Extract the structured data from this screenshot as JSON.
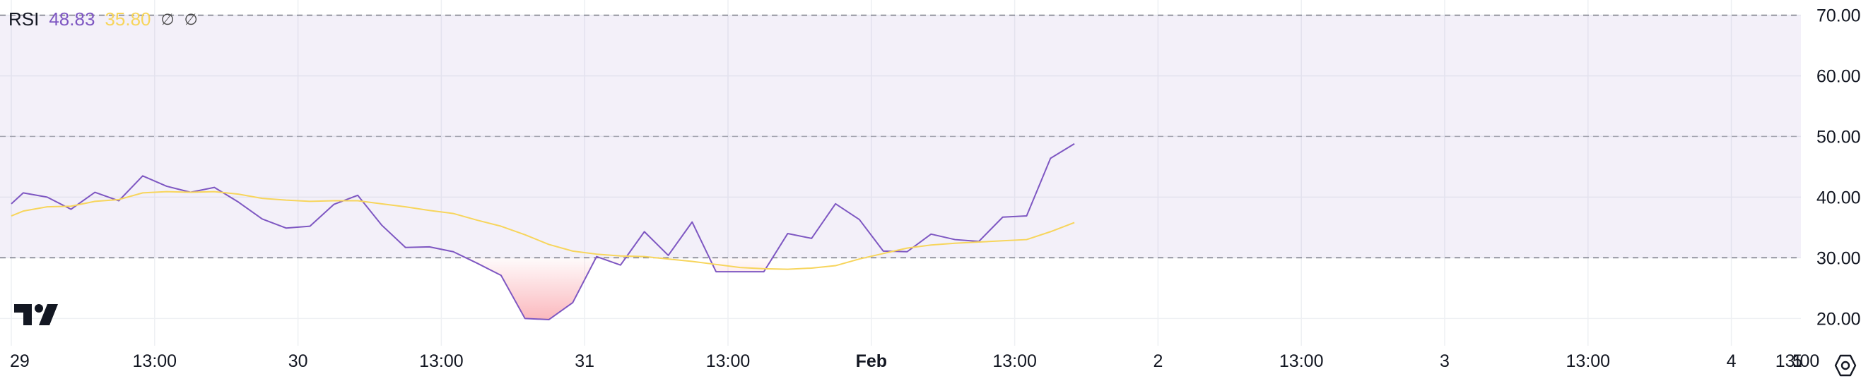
{
  "legend": {
    "indicator": "RSI",
    "rsi_value": "48.83",
    "ma_value": "35.80",
    "na1": "∅",
    "na2": "∅"
  },
  "icons": {
    "logo": "tradingview-logo-icon",
    "settings": "settings-gear-icon"
  },
  "colors": {
    "rsi": "#7e57c2",
    "ma": "#f7d55c",
    "band": "#7e57c2",
    "oversold_fill": "#f23645"
  },
  "chart_data": {
    "type": "line",
    "title": "",
    "y_ticks": [
      "70.00",
      "60.00",
      "50.00",
      "40.00",
      "30.00",
      "20.00"
    ],
    "ylim": [
      15.5,
      72.5
    ],
    "x_ticks": [
      "29",
      "13:00",
      "30",
      "13:00",
      "31",
      "13:00",
      "Feb",
      "13:00",
      "2",
      "13:00",
      "3",
      "13:00",
      "4",
      "13:00",
      "5",
      "1"
    ],
    "band": {
      "upper": 70,
      "lower": 30
    },
    "midline": 50,
    "x": [
      0,
      0.5,
      1.5,
      2.5,
      3.5,
      4.5,
      5.5,
      6.5,
      7.5,
      8.5,
      9.5,
      10.5,
      11.5,
      12.5,
      13.5,
      14.5,
      15.5,
      16.5,
      17.5,
      18.5,
      19.5,
      20.5,
      21.5,
      22.5,
      23.5,
      24.5,
      25.5,
      26.5,
      27.5,
      28.5,
      29.5,
      30.5,
      31.5,
      32.5,
      33.5,
      34.5,
      35.5,
      36.5,
      37.5,
      38.5,
      39.5,
      40.5,
      41.5,
      42.5,
      43.5,
      44.5
    ],
    "series": [
      {
        "values": [
          38.9,
          40.7,
          40.0,
          38.0,
          40.8,
          39.4,
          43.5,
          41.8,
          40.8,
          41.6,
          39.2,
          36.4,
          34.9,
          35.2,
          38.8,
          40.3,
          35.4,
          31.7,
          31.8,
          31.0,
          29.1,
          27.1,
          20.0,
          19.8,
          22.6,
          30.2,
          28.8,
          34.3,
          30.4,
          35.9,
          27.7,
          27.7,
          27.7,
          34.0,
          33.2,
          38.9,
          36.3,
          31.1,
          31.0,
          33.9,
          33.0,
          32.7,
          36.7,
          36.9,
          46.4,
          48.8
        ]
      },
      {
        "values": [
          36.9,
          37.7,
          38.4,
          38.5,
          39.3,
          39.6,
          40.7,
          40.9,
          40.8,
          40.9,
          40.5,
          39.8,
          39.5,
          39.3,
          39.4,
          39.4,
          38.9,
          38.4,
          37.8,
          37.3,
          36.2,
          35.2,
          33.8,
          32.2,
          31.1,
          30.6,
          30.3,
          30.2,
          29.8,
          29.4,
          28.9,
          28.4,
          28.2,
          28.1,
          28.3,
          28.7,
          29.8,
          30.7,
          31.6,
          32.1,
          32.4,
          32.6,
          32.8,
          33.0,
          34.3,
          35.8
        ]
      }
    ]
  }
}
